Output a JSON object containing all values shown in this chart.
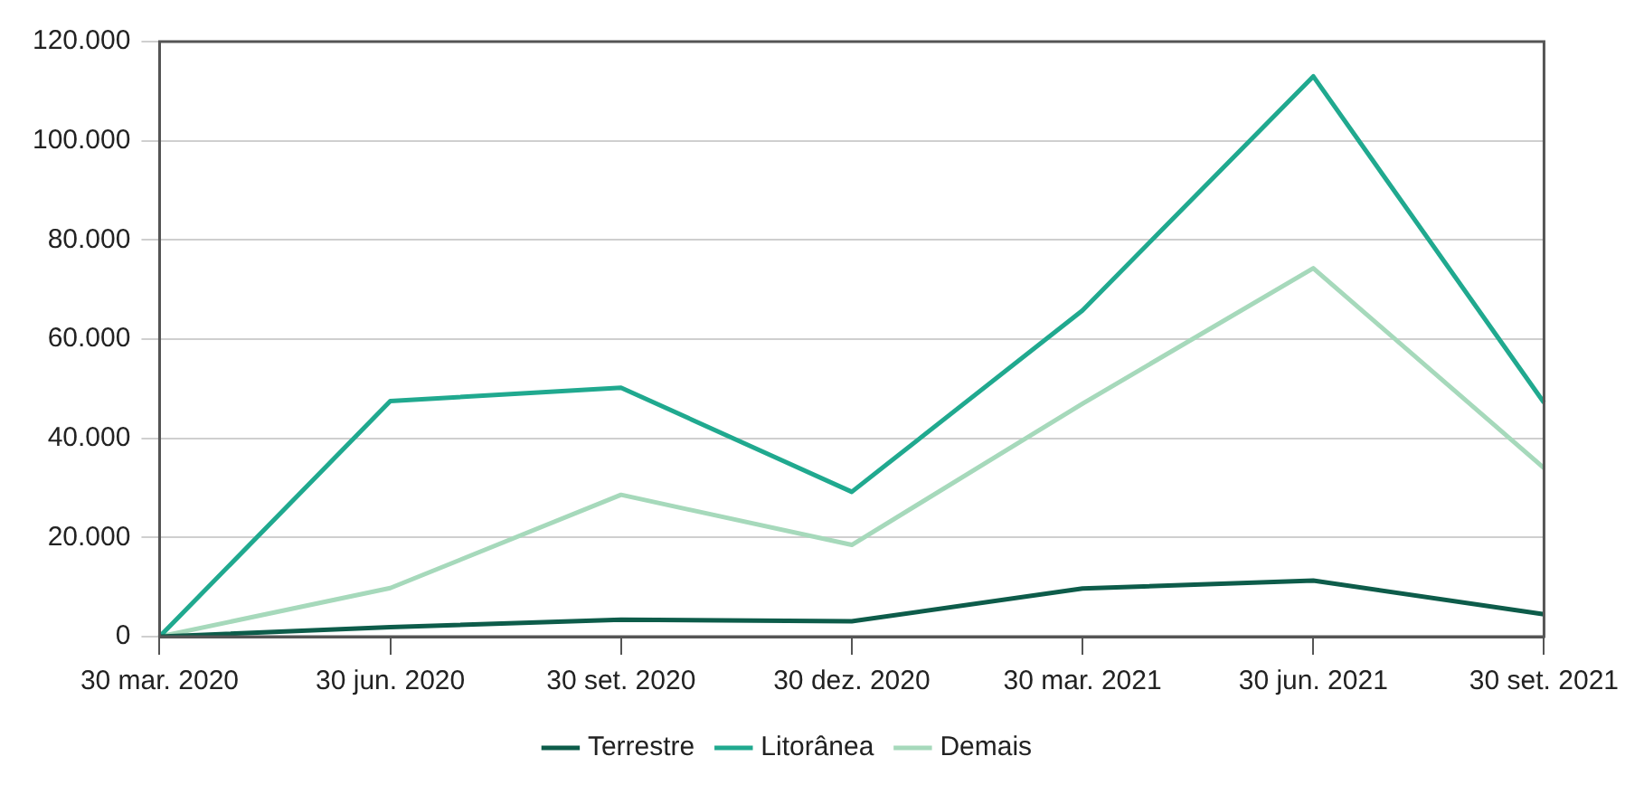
{
  "chart_data": {
    "type": "line",
    "categories": [
      "30 mar. 2020",
      "30 jun. 2020",
      "30 set. 2020",
      "30 dez. 2020",
      "30 mar. 2021",
      "30 jun. 2021",
      "30 set. 2021"
    ],
    "series": [
      {
        "name": "Terrestre",
        "color": "#0d5c4a",
        "values": [
          0,
          1900,
          3400,
          3100,
          9700,
          11300,
          4500
        ]
      },
      {
        "name": "Litorânea",
        "color": "#20a98f",
        "values": [
          0,
          47500,
          50200,
          29200,
          65800,
          113000,
          47200
        ]
      },
      {
        "name": "Demais",
        "color": "#a6d9bb",
        "values": [
          0,
          9800,
          28600,
          18500,
          47000,
          74300,
          34000
        ]
      }
    ],
    "ylim": [
      0,
      120000
    ],
    "yticks": [
      {
        "value": 0,
        "label": "0"
      },
      {
        "value": 20000,
        "label": "20.000"
      },
      {
        "value": 40000,
        "label": "40.000"
      },
      {
        "value": 60000,
        "label": "60.000"
      },
      {
        "value": 80000,
        "label": "80.000"
      },
      {
        "value": 100000,
        "label": "100.000"
      },
      {
        "value": 120000,
        "label": "120.000"
      }
    ],
    "grid": "y",
    "legend": "bottom",
    "marker": "none",
    "line_style": "solid"
  }
}
